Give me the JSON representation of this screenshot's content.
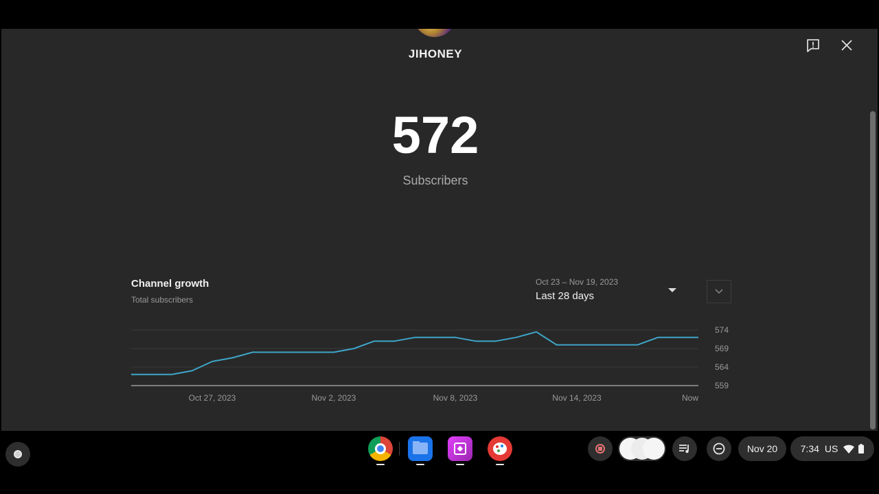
{
  "channel": {
    "name": "JIHONEY"
  },
  "stats": {
    "subscriber_count": "572",
    "subscriber_label": "Subscribers"
  },
  "chart_header": {
    "title": "Channel growth",
    "subtitle": "Total subscribers",
    "date_range": "Oct 23 – Nov 19, 2023",
    "range_label": "Last 28 days"
  },
  "chart_data": {
    "type": "line",
    "title": "Channel growth",
    "subtitle": "Total subscribers",
    "x_tick_labels": [
      "Oct 27, 2023",
      "Nov 2, 2023",
      "Nov 8, 2023",
      "Nov 14, 2023",
      "Now"
    ],
    "y_tick_labels": [
      "574",
      "569",
      "564",
      "559"
    ],
    "ylim": [
      559,
      574
    ],
    "grid": true,
    "line_color": "#3ea6c9",
    "series": [
      {
        "values": [
          562,
          562,
          562,
          563,
          565.5,
          566.5,
          568,
          568,
          568,
          568,
          568,
          569,
          571,
          571,
          572,
          572,
          572,
          571,
          571,
          572,
          573.5,
          570,
          570,
          570,
          570,
          570,
          572,
          572,
          572
        ]
      }
    ]
  },
  "shelf": {
    "apps": [
      {
        "icon": "chrome-icon"
      },
      {
        "icon": "files-icon"
      },
      {
        "icon": "app-store-icon"
      },
      {
        "icon": "paint-icon"
      }
    ],
    "date": "Nov 20",
    "time": "7:34",
    "locale": "US"
  },
  "colors": {
    "background": "#282828",
    "accent": "#3ea6c9",
    "shelf": "#000000"
  }
}
